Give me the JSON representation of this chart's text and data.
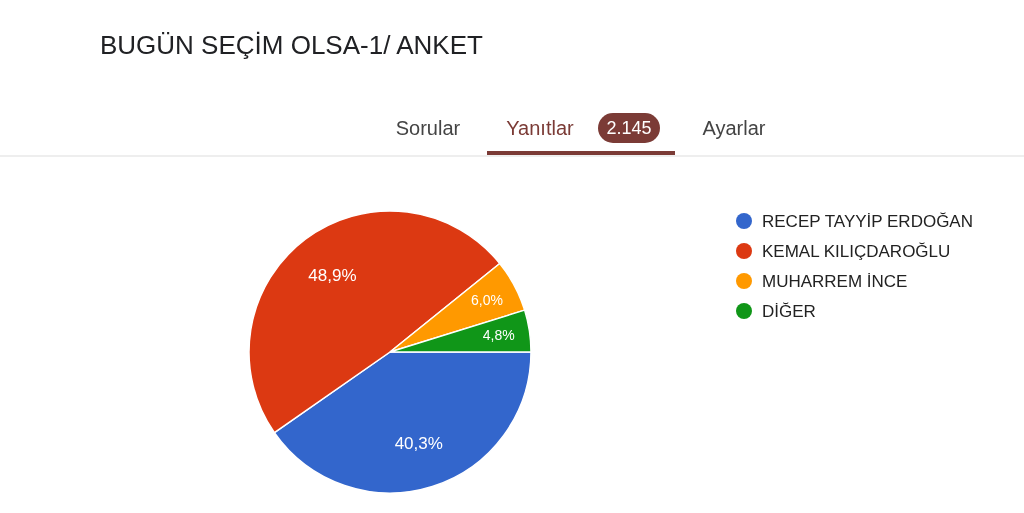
{
  "chart_data": {
    "type": "pie",
    "title": "BUGÜN SEÇİM OLSA-1/ ANKET",
    "annotations": [
      "Sorular",
      "Yanıtlar",
      "2.145",
      "Ayarlar"
    ],
    "categories": [
      "RECEP TAYYİP ERDOĞAN",
      "KEMAL KILIÇDAROĞLU",
      "MUHARREM İNCE",
      "DİĞER"
    ],
    "values": [
      40.3,
      48.9,
      6.0,
      4.8
    ],
    "colors": [
      "#3366cc",
      "#dc3912",
      "#ff9900",
      "#109618"
    ],
    "value_labels": [
      "40,3%",
      "48,9%",
      "6,0%",
      "4,8%"
    ],
    "legend": "right"
  }
}
